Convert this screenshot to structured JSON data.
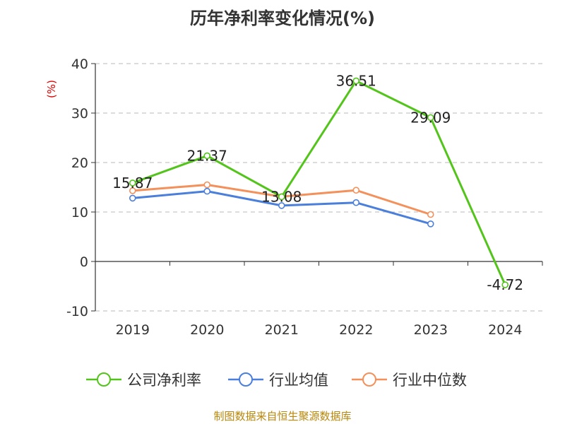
{
  "chart_data": {
    "type": "line",
    "title": "历年净利率变化情况(%)",
    "ylabel": "(%)",
    "categories": [
      "2019",
      "2020",
      "2021",
      "2022",
      "2023",
      "2024"
    ],
    "ylim": [
      -10,
      40
    ],
    "yticks": [
      "40",
      "30",
      "20",
      "10",
      "0",
      "-10"
    ],
    "grid": true,
    "legend_position": "bottom",
    "series": [
      {
        "name": "公司净利率",
        "color": "#52c41a",
        "values": [
          15.87,
          21.37,
          13.08,
          36.51,
          29.09,
          -4.72
        ],
        "labels": [
          "15.87",
          "21.37",
          "13.08",
          "36.51",
          "29.09",
          "-4.72"
        ]
      },
      {
        "name": "行业均值",
        "color": "#4a7fdc",
        "values": [
          12.8,
          14.2,
          11.3,
          11.9,
          7.6,
          null
        ]
      },
      {
        "name": "行业中位数",
        "color": "#f4905a",
        "values": [
          14.3,
          15.5,
          13.1,
          14.4,
          9.5,
          null
        ]
      }
    ],
    "source": "制图数据来自恒生聚源数据库"
  }
}
